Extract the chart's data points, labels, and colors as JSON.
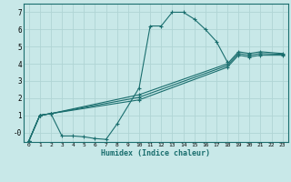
{
  "xlabel": "Humidex (Indice chaleur)",
  "background_color": "#c8e8e8",
  "grid_color": "#b0d4d4",
  "line_color": "#1a6e6e",
  "xlim": [
    -0.5,
    23.5
  ],
  "ylim": [
    -0.55,
    7.5
  ],
  "xticks": [
    0,
    1,
    2,
    3,
    4,
    5,
    6,
    7,
    8,
    9,
    10,
    11,
    12,
    13,
    14,
    15,
    16,
    17,
    18,
    19,
    20,
    21,
    22,
    23
  ],
  "yticks": [
    0,
    1,
    2,
    3,
    4,
    5,
    6,
    7
  ],
  "ytick_labels": [
    "-0",
    "1",
    "2",
    "3",
    "4",
    "5",
    "6",
    "7"
  ],
  "series": [
    {
      "x": [
        0,
        1,
        2,
        3,
        4,
        5,
        6,
        7,
        8,
        10,
        11,
        12,
        13,
        14,
        15,
        16,
        17,
        18
      ],
      "y": [
        -0.5,
        1.0,
        1.1,
        -0.2,
        -0.2,
        -0.25,
        -0.35,
        -0.4,
        0.5,
        2.6,
        6.2,
        6.2,
        7.0,
        7.0,
        6.6,
        6.0,
        5.3,
        4.1
      ]
    },
    {
      "x": [
        0,
        1,
        2,
        10,
        18,
        19,
        20,
        21,
        23
      ],
      "y": [
        -0.5,
        1.0,
        1.1,
        2.2,
        4.0,
        4.7,
        4.6,
        4.7,
        4.6
      ]
    },
    {
      "x": [
        0,
        1,
        2,
        10,
        18,
        19,
        20,
        21,
        23
      ],
      "y": [
        -0.5,
        1.0,
        1.1,
        2.05,
        3.9,
        4.6,
        4.5,
        4.6,
        4.55
      ]
    },
    {
      "x": [
        0,
        1,
        2,
        10,
        18,
        19,
        20,
        21,
        23
      ],
      "y": [
        -0.5,
        1.0,
        1.1,
        1.9,
        3.8,
        4.5,
        4.4,
        4.5,
        4.5
      ]
    }
  ]
}
